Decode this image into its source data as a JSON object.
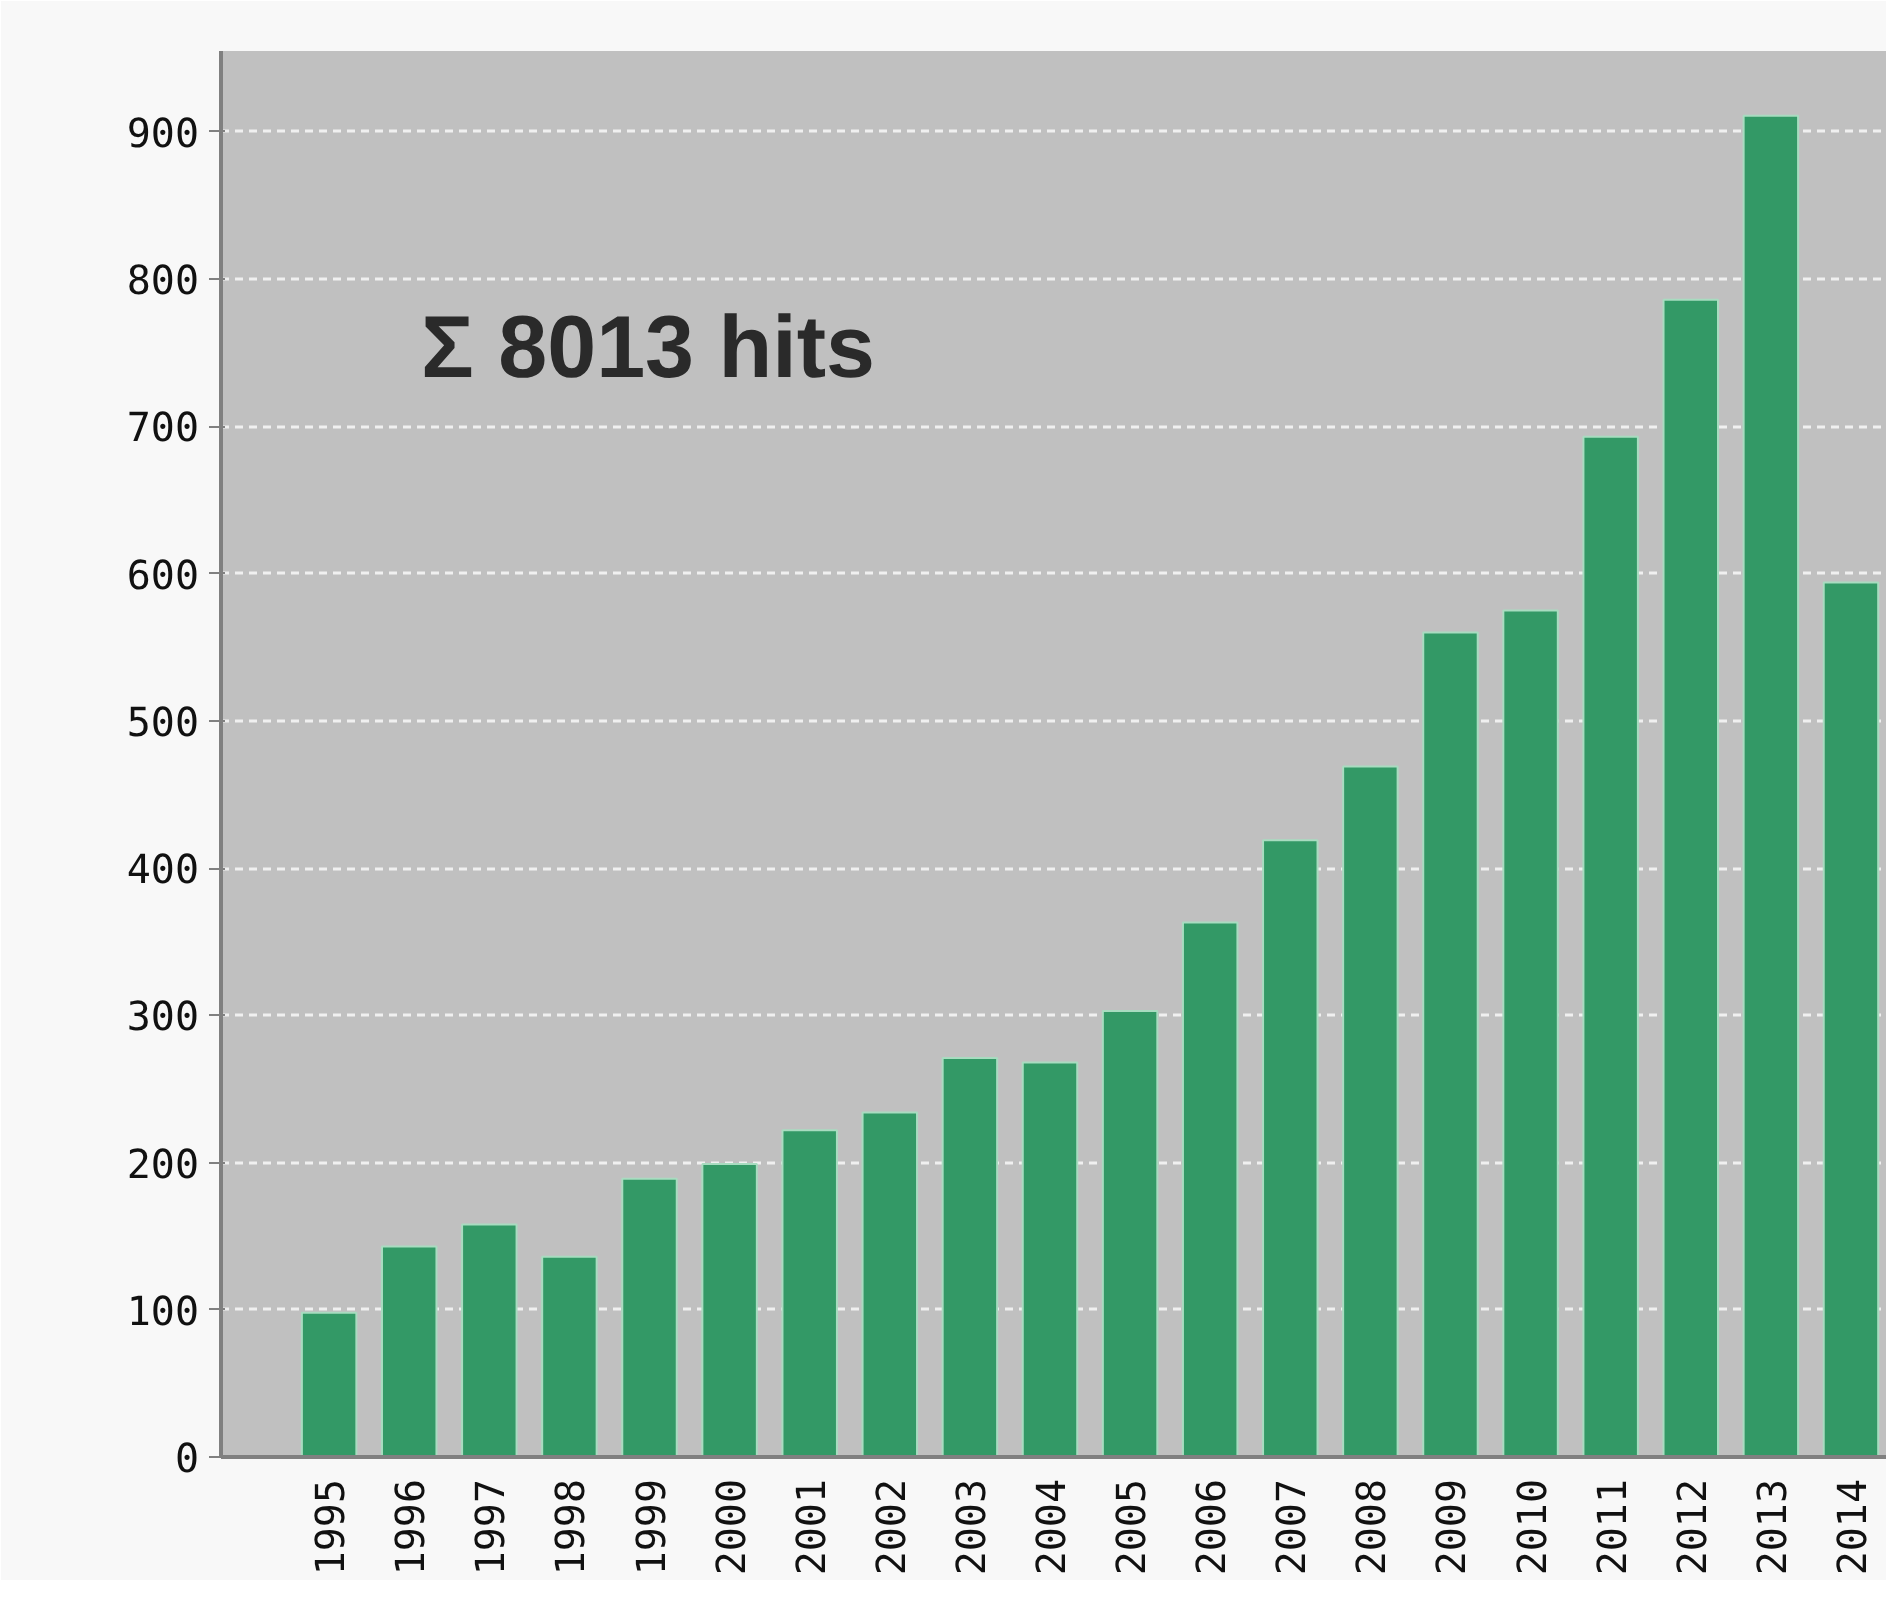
{
  "chart_data": {
    "type": "bar",
    "categories": [
      "1995",
      "1996",
      "1997",
      "1998",
      "1999",
      "2000",
      "2001",
      "2002",
      "2003",
      "2004",
      "2005",
      "2006",
      "2007",
      "2008",
      "2009",
      "2010",
      "2011",
      "2012",
      "2013",
      "2014"
    ],
    "values": [
      98,
      143,
      158,
      136,
      189,
      199,
      222,
      234,
      271,
      268,
      303,
      363,
      419,
      469,
      560,
      575,
      693,
      786,
      911,
      594
    ],
    "color": "#339966",
    "ylim": [
      0,
      955
    ],
    "yticks": [
      0,
      100,
      200,
      300,
      400,
      500,
      600,
      700,
      800,
      900
    ],
    "grid": "y",
    "annotations": [
      "Σ 8013 hits"
    ]
  }
}
